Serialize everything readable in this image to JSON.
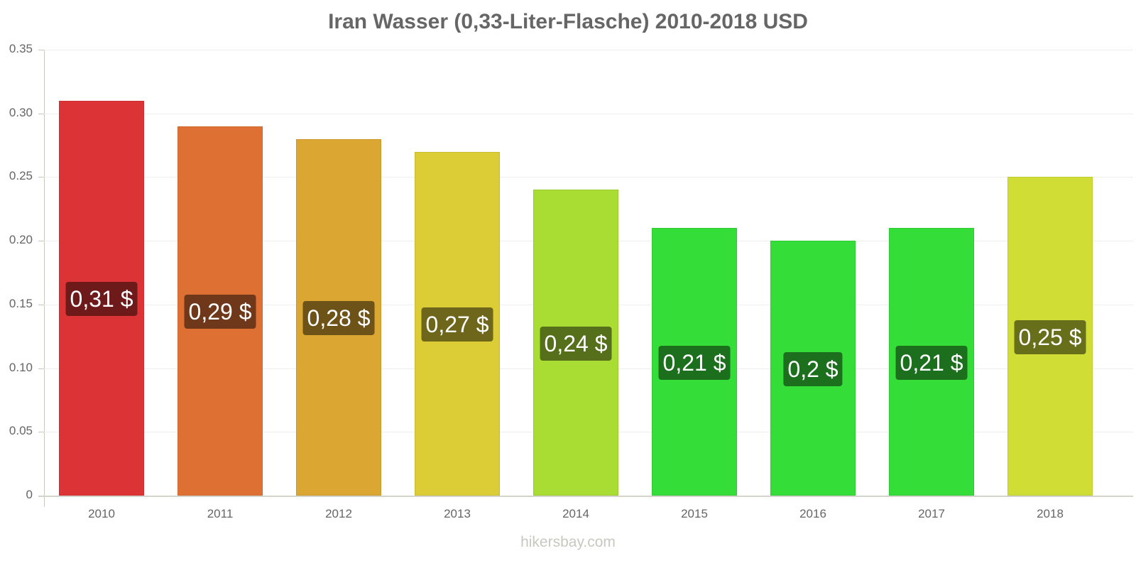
{
  "chart_data": {
    "type": "bar",
    "title": "Iran Wasser (0,33-Liter-Flasche) 2010-2018 USD",
    "xlabel": "",
    "ylabel": "",
    "ylim": [
      0,
      0.35
    ],
    "yticks": [
      "0",
      "0.05",
      "0.10",
      "0.15",
      "0.20",
      "0.25",
      "0.30",
      "0.35"
    ],
    "grid": true,
    "legend": null,
    "categories": [
      "2010",
      "2011",
      "2012",
      "2013",
      "2014",
      "2015",
      "2016",
      "2017",
      "2018"
    ],
    "values": [
      0.31,
      0.29,
      0.28,
      0.27,
      0.24,
      0.21,
      0.2,
      0.21,
      0.25
    ],
    "labels": [
      "0,31 $",
      "0,29 $",
      "0,28 $",
      "0,27 $",
      "0,24 $",
      "0,21 $",
      "0,2 $",
      "0,21 $",
      "0,25 $"
    ],
    "bar_colors": [
      "#dc3336",
      "#de7034",
      "#dca632",
      "#dccc35",
      "#aadd33",
      "#35dd39",
      "#35dd39",
      "#35dd39",
      "#cfdd35"
    ],
    "label_bg_colors": [
      "#6e1a1b",
      "#6f381a",
      "#6e5319",
      "#6e661a",
      "#556f1a",
      "#1b6f1d",
      "#1b6f1d",
      "#1b6f1d",
      "#686f1a"
    ]
  },
  "watermark": "hikersbay.com"
}
